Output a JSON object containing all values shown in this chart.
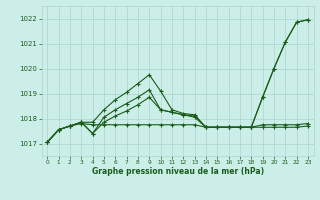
{
  "title": "Graphe pression niveau de la mer (hPa)",
  "bg_color": "#cceee8",
  "grid_color": "#aad4cc",
  "line_color": "#1a5c1a",
  "text_color": "#1a5c1a",
  "xlim": [
    -0.5,
    23.5
  ],
  "ylim": [
    1016.5,
    1022.5
  ],
  "yticks": [
    1017,
    1018,
    1019,
    1020,
    1021,
    1022
  ],
  "xticks": [
    0,
    1,
    2,
    3,
    4,
    5,
    6,
    7,
    8,
    9,
    10,
    11,
    12,
    13,
    14,
    15,
    16,
    17,
    18,
    19,
    20,
    21,
    22,
    23
  ],
  "line1_x": [
    0,
    1,
    2,
    3,
    4,
    5,
    6,
    7,
    8,
    9,
    10,
    11,
    12,
    13,
    14,
    15,
    16,
    17,
    18,
    19,
    20,
    21,
    22,
    23
  ],
  "line1_y": [
    1017.05,
    1017.55,
    1017.7,
    1017.8,
    1017.75,
    1017.75,
    1017.75,
    1017.75,
    1017.75,
    1017.75,
    1017.75,
    1017.75,
    1017.75,
    1017.75,
    1017.65,
    1017.65,
    1017.65,
    1017.65,
    1017.65,
    1017.75,
    1017.75,
    1017.75,
    1017.75,
    1017.8
  ],
  "line2_x": [
    0,
    1,
    2,
    3,
    4,
    5,
    6,
    7,
    8,
    9,
    10,
    11,
    12,
    13,
    14,
    15,
    16,
    17,
    18,
    19,
    20,
    21,
    22,
    23
  ],
  "line2_y": [
    1017.05,
    1017.55,
    1017.7,
    1017.85,
    1017.4,
    1017.85,
    1018.1,
    1018.3,
    1018.55,
    1018.85,
    1018.35,
    1018.25,
    1018.15,
    1018.05,
    1017.65,
    1017.65,
    1017.65,
    1017.65,
    1017.65,
    1017.65,
    1017.65,
    1017.65,
    1017.65,
    1017.7
  ],
  "line3_x": [
    0,
    1,
    2,
    3,
    4,
    5,
    6,
    7,
    8,
    9,
    10,
    11,
    12,
    13,
    14,
    15,
    16,
    17,
    18,
    19,
    20,
    21,
    22,
    23
  ],
  "line3_y": [
    1017.05,
    1017.55,
    1017.7,
    1017.85,
    1017.4,
    1018.05,
    1018.35,
    1018.6,
    1018.85,
    1019.15,
    1018.35,
    1018.25,
    1018.15,
    1018.1,
    1017.65,
    1017.65,
    1017.65,
    1017.65,
    1017.65,
    1018.85,
    1020.0,
    1021.05,
    1021.85,
    1021.95
  ],
  "line4_x": [
    0,
    1,
    2,
    3,
    4,
    5,
    6,
    7,
    8,
    9,
    10,
    11,
    12,
    13,
    14,
    15,
    16,
    17,
    18,
    19,
    20,
    21,
    22,
    23
  ],
  "line4_y": [
    1017.05,
    1017.55,
    1017.7,
    1017.85,
    1017.85,
    1018.35,
    1018.75,
    1019.05,
    1019.4,
    1019.75,
    1019.1,
    1018.35,
    1018.2,
    1018.15,
    1017.65,
    1017.65,
    1017.65,
    1017.65,
    1017.65,
    1018.85,
    1020.0,
    1021.05,
    1021.85,
    1021.95
  ]
}
